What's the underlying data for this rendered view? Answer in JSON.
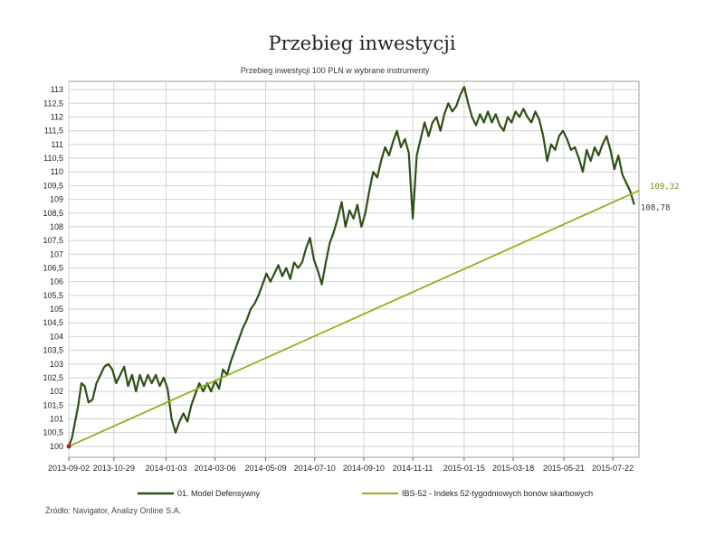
{
  "page": {
    "title": "Przebieg inwestycji",
    "source": "Źródło: Navigator, Analizy Online S.A."
  },
  "chart_data": {
    "type": "line",
    "subtitle": "Przebieg inwestycji 100 PLN w wybrane instrumenty",
    "xlabel": "",
    "ylabel": "",
    "xlim": [
      "2013-09-02",
      "2015-08-24"
    ],
    "ylim": [
      99.6,
      113.3
    ],
    "y_ticks": [
      "100",
      "100,5",
      "101",
      "101,5",
      "102",
      "102,5",
      "103",
      "103,5",
      "104",
      "104,5",
      "105",
      "105,5",
      "106",
      "106,5",
      "107",
      "107,5",
      "108",
      "108,5",
      "109",
      "109,5",
      "110",
      "110,5",
      "111",
      "111,5",
      "112",
      "112,5",
      "113"
    ],
    "y_tick_values": [
      100,
      100.5,
      101,
      101.5,
      102,
      102.5,
      103,
      103.5,
      104,
      104.5,
      105,
      105.5,
      106,
      106.5,
      107,
      107.5,
      108,
      108.5,
      109,
      109.5,
      110,
      110.5,
      111,
      111.5,
      112,
      112.5,
      113
    ],
    "x_ticks": [
      "2013-09-02",
      "2013-10-29",
      "2014-01-03",
      "2014-03-06",
      "2014-05-09",
      "2014-07-10",
      "2014-09-10",
      "2014-11-11",
      "2015-01-15",
      "2015-03-18",
      "2015-05-21",
      "2015-07-22"
    ],
    "grid": true,
    "legend_position": "bottom",
    "series": [
      {
        "name": "01. Model Defensywny",
        "color": "#2d5016",
        "end_label": "108,78",
        "points": [
          [
            "2013-09-02",
            100.0
          ],
          [
            "2013-09-06",
            100.3
          ],
          [
            "2013-09-10",
            100.9
          ],
          [
            "2013-09-14",
            101.5
          ],
          [
            "2013-09-18",
            102.3
          ],
          [
            "2013-09-22",
            102.2
          ],
          [
            "2013-09-27",
            101.6
          ],
          [
            "2013-10-02",
            101.7
          ],
          [
            "2013-10-07",
            102.3
          ],
          [
            "2013-10-12",
            102.6
          ],
          [
            "2013-10-17",
            102.9
          ],
          [
            "2013-10-22",
            103.0
          ],
          [
            "2013-10-27",
            102.8
          ],
          [
            "2013-11-01",
            102.3
          ],
          [
            "2013-11-06",
            102.6
          ],
          [
            "2013-11-11",
            102.9
          ],
          [
            "2013-11-16",
            102.2
          ],
          [
            "2013-11-21",
            102.6
          ],
          [
            "2013-11-26",
            102.0
          ],
          [
            "2013-12-01",
            102.6
          ],
          [
            "2013-12-06",
            102.2
          ],
          [
            "2013-12-11",
            102.6
          ],
          [
            "2013-12-16",
            102.3
          ],
          [
            "2013-12-21",
            102.6
          ],
          [
            "2013-12-26",
            102.2
          ],
          [
            "2013-12-31",
            102.5
          ],
          [
            "2014-01-05",
            102.1
          ],
          [
            "2014-01-10",
            101.0
          ],
          [
            "2014-01-15",
            100.5
          ],
          [
            "2014-01-20",
            100.9
          ],
          [
            "2014-01-25",
            101.2
          ],
          [
            "2014-01-30",
            100.9
          ],
          [
            "2014-02-04",
            101.5
          ],
          [
            "2014-02-09",
            101.9
          ],
          [
            "2014-02-14",
            102.3
          ],
          [
            "2014-02-19",
            102.0
          ],
          [
            "2014-02-24",
            102.3
          ],
          [
            "2014-03-01",
            102.0
          ],
          [
            "2014-03-06",
            102.4
          ],
          [
            "2014-03-11",
            102.1
          ],
          [
            "2014-03-16",
            102.8
          ],
          [
            "2014-03-21",
            102.6
          ],
          [
            "2014-03-26",
            103.1
          ],
          [
            "2014-03-31",
            103.5
          ],
          [
            "2014-04-05",
            103.9
          ],
          [
            "2014-04-10",
            104.3
          ],
          [
            "2014-04-15",
            104.6
          ],
          [
            "2014-04-20",
            105.0
          ],
          [
            "2014-04-25",
            105.2
          ],
          [
            "2014-04-30",
            105.5
          ],
          [
            "2014-05-05",
            105.9
          ],
          [
            "2014-05-10",
            106.3
          ],
          [
            "2014-05-15",
            106.0
          ],
          [
            "2014-05-20",
            106.3
          ],
          [
            "2014-05-25",
            106.6
          ],
          [
            "2014-05-30",
            106.2
          ],
          [
            "2014-06-04",
            106.5
          ],
          [
            "2014-06-09",
            106.1
          ],
          [
            "2014-06-14",
            106.7
          ],
          [
            "2014-06-19",
            106.5
          ],
          [
            "2014-06-24",
            106.7
          ],
          [
            "2014-06-29",
            107.2
          ],
          [
            "2014-07-04",
            107.6
          ],
          [
            "2014-07-09",
            106.8
          ],
          [
            "2014-07-14",
            106.4
          ],
          [
            "2014-07-19",
            105.9
          ],
          [
            "2014-07-24",
            106.7
          ],
          [
            "2014-07-29",
            107.4
          ],
          [
            "2014-08-03",
            107.8
          ],
          [
            "2014-08-08",
            108.3
          ],
          [
            "2014-08-13",
            108.9
          ],
          [
            "2014-08-18",
            108.0
          ],
          [
            "2014-08-23",
            108.6
          ],
          [
            "2014-08-28",
            108.3
          ],
          [
            "2014-09-02",
            108.8
          ],
          [
            "2014-09-07",
            108.0
          ],
          [
            "2014-09-12",
            108.5
          ],
          [
            "2014-09-17",
            109.3
          ],
          [
            "2014-09-22",
            110.0
          ],
          [
            "2014-09-27",
            109.8
          ],
          [
            "2014-10-02",
            110.4
          ],
          [
            "2014-10-07",
            110.9
          ],
          [
            "2014-10-12",
            110.6
          ],
          [
            "2014-10-17",
            111.1
          ],
          [
            "2014-10-22",
            111.5
          ],
          [
            "2014-10-27",
            110.9
          ],
          [
            "2014-11-01",
            111.2
          ],
          [
            "2014-11-06",
            110.7
          ],
          [
            "2014-11-11",
            108.3
          ],
          [
            "2014-11-16",
            110.6
          ],
          [
            "2014-11-21",
            111.2
          ],
          [
            "2014-11-26",
            111.8
          ],
          [
            "2014-12-01",
            111.3
          ],
          [
            "2014-12-06",
            111.8
          ],
          [
            "2014-12-11",
            112.0
          ],
          [
            "2014-12-16",
            111.5
          ],
          [
            "2014-12-21",
            112.1
          ],
          [
            "2014-12-26",
            112.5
          ],
          [
            "2014-12-31",
            112.2
          ],
          [
            "2015-01-05",
            112.4
          ],
          [
            "2015-01-10",
            112.8
          ],
          [
            "2015-01-15",
            113.1
          ],
          [
            "2015-01-20",
            112.5
          ],
          [
            "2015-01-25",
            112.0
          ],
          [
            "2015-01-30",
            111.7
          ],
          [
            "2015-02-04",
            112.1
          ],
          [
            "2015-02-09",
            111.8
          ],
          [
            "2015-02-14",
            112.2
          ],
          [
            "2015-02-19",
            111.8
          ],
          [
            "2015-02-24",
            112.1
          ],
          [
            "2015-03-01",
            111.7
          ],
          [
            "2015-03-06",
            111.5
          ],
          [
            "2015-03-11",
            112.0
          ],
          [
            "2015-03-16",
            111.8
          ],
          [
            "2015-03-21",
            112.2
          ],
          [
            "2015-03-26",
            112.0
          ],
          [
            "2015-03-31",
            112.3
          ],
          [
            "2015-04-05",
            112.0
          ],
          [
            "2015-04-10",
            111.8
          ],
          [
            "2015-04-15",
            112.2
          ],
          [
            "2015-04-20",
            111.9
          ],
          [
            "2015-04-25",
            111.3
          ],
          [
            "2015-04-30",
            110.4
          ],
          [
            "2015-05-05",
            111.0
          ],
          [
            "2015-05-10",
            110.8
          ],
          [
            "2015-05-15",
            111.3
          ],
          [
            "2015-05-20",
            111.5
          ],
          [
            "2015-05-25",
            111.2
          ],
          [
            "2015-05-30",
            110.8
          ],
          [
            "2015-06-04",
            110.9
          ],
          [
            "2015-06-09",
            110.5
          ],
          [
            "2015-06-14",
            110.0
          ],
          [
            "2015-06-19",
            110.8
          ],
          [
            "2015-06-24",
            110.4
          ],
          [
            "2015-06-29",
            110.9
          ],
          [
            "2015-07-04",
            110.6
          ],
          [
            "2015-07-09",
            111.0
          ],
          [
            "2015-07-14",
            111.3
          ],
          [
            "2015-07-19",
            110.8
          ],
          [
            "2015-07-24",
            110.1
          ],
          [
            "2015-07-29",
            110.6
          ],
          [
            "2015-08-03",
            109.9
          ],
          [
            "2015-08-08",
            109.6
          ],
          [
            "2015-08-13",
            109.3
          ],
          [
            "2015-08-18",
            108.8
          ]
        ]
      },
      {
        "name": "IBS-52 - Indeks 52-tygodniowych bonów skarbowych",
        "color": "#8db31a",
        "end_label": "109,32",
        "points": [
          [
            "2013-09-02",
            100.0
          ],
          [
            "2015-08-24",
            109.32
          ]
        ]
      }
    ]
  }
}
